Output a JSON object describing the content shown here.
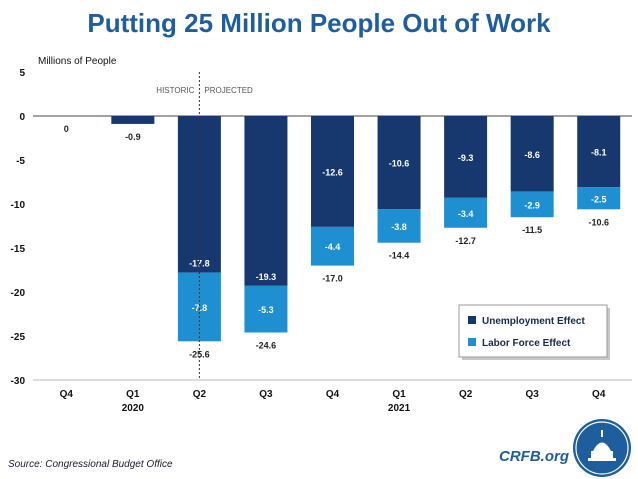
{
  "header": {
    "title": "Putting 25 Million People Out of Work"
  },
  "footer": {
    "source": "Source: Congressional Budget Office",
    "brand": "CRFB.org"
  },
  "colors": {
    "unemployment": "#17386e",
    "labor_force": "#1e8fd0",
    "title": "#1f5e9c"
  },
  "chart_data": {
    "type": "bar",
    "stacked": true,
    "ylabel": "Millions of People",
    "ylim": [
      -30,
      5
    ],
    "yticks": [
      5,
      0,
      -5,
      -10,
      -15,
      -20,
      -25,
      -30
    ],
    "categories": [
      "Q4",
      "Q1",
      "Q2",
      "Q3",
      "Q4",
      "Q1",
      "Q2",
      "Q3",
      "Q4"
    ],
    "year_labels": [
      "",
      "2020",
      "",
      "",
      "",
      "2021",
      "",
      "",
      ""
    ],
    "divider": {
      "left_label": "HISTORIC",
      "right_label": "PROJECTED",
      "after_index": 2
    },
    "series": [
      {
        "name": "Unemployment Effect",
        "values": [
          0,
          -0.9,
          -17.8,
          -19.3,
          -12.6,
          -10.6,
          -9.3,
          -8.6,
          -8.1
        ]
      },
      {
        "name": "Labor Force Effect",
        "values": [
          0,
          0,
          -7.8,
          -5.3,
          -4.4,
          -3.8,
          -3.4,
          -2.9,
          -2.5
        ]
      }
    ],
    "series_labels": [
      [
        "0",
        "-0.9",
        "-17.8",
        "-19.3",
        "-12.6",
        "-10.6",
        "-9.3",
        "-8.6",
        "-8.1"
      ],
      [
        "",
        "",
        "-7.8",
        "-5.3",
        "-4.4",
        "-3.8",
        "-3.4",
        "-2.9",
        "-2.5"
      ]
    ],
    "totals": [
      "",
      "",
      "-25.6",
      "-24.6",
      "-17.0",
      "-14.4",
      "-12.7",
      "-11.5",
      "-10.6"
    ],
    "legend_position": "bottom-right"
  }
}
